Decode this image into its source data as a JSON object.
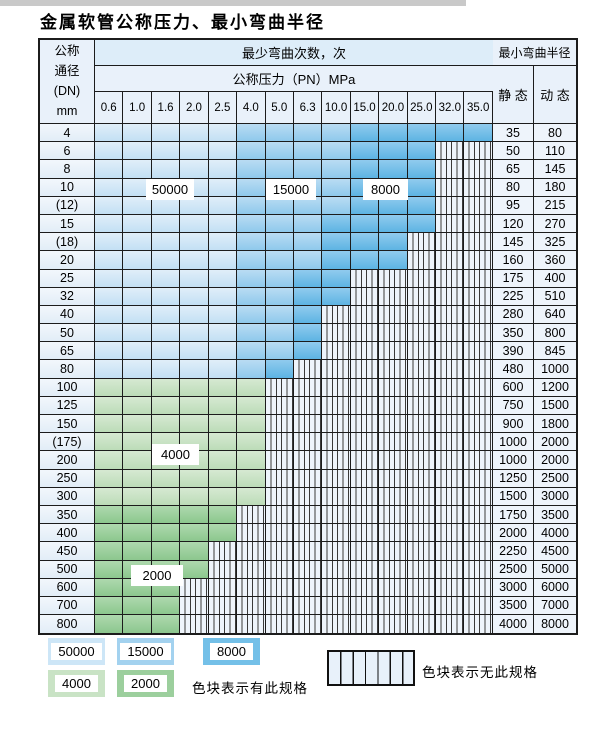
{
  "title": "金属软管公称压力、最小弯曲半径",
  "table": {
    "header": {
      "dn_lines": [
        "公称",
        "通径",
        "(DN)",
        "mm"
      ],
      "cycles_title": "最少弯曲次数，次",
      "pressure_title": "公称压力（PN）MPa",
      "pressures": [
        "0.6",
        "1.0",
        "1.6",
        "2.0",
        "2.5",
        "4.0",
        "5.0",
        "6.3",
        "10.0",
        "15.0",
        "20.0",
        "25.0",
        "32.0",
        "35.0"
      ],
      "radius_title": "最小弯曲半径",
      "static_label": "静 态",
      "dynamic_label": "动 态"
    },
    "spec_code_map": {
      "L": "50000",
      "M": "15000",
      "D": "8000",
      "G": "4000",
      "N": "2000",
      "X": "no-spec"
    },
    "rows": [
      {
        "dn": "4",
        "cells": "LLLLLMMMMDDDDD",
        "static": "35",
        "dynamic": "80"
      },
      {
        "dn": "6",
        "cells": "LLLLLMMMMDDDXX",
        "static": "50",
        "dynamic": "110"
      },
      {
        "dn": "8",
        "cells": "LLLLLMMMMDDDXX",
        "static": "65",
        "dynamic": "145"
      },
      {
        "dn": "10",
        "cells": "LLLLLMMMMDDDXX",
        "static": "80",
        "dynamic": "180"
      },
      {
        "dn": "(12)",
        "cells": "LLLLLMMMMDDDXX",
        "static": "95",
        "dynamic": "215"
      },
      {
        "dn": "15",
        "cells": "LLLLLMMMDDDDXX",
        "static": "120",
        "dynamic": "270"
      },
      {
        "dn": "(18)",
        "cells": "LLLLLMMMDDDXXX",
        "static": "145",
        "dynamic": "325"
      },
      {
        "dn": "20",
        "cells": "LLLLLMMMDDDXXX",
        "static": "160",
        "dynamic": "360"
      },
      {
        "dn": "25",
        "cells": "LLLLLMMDDXXXXX",
        "static": "175",
        "dynamic": "400"
      },
      {
        "dn": "32",
        "cells": "LLLLLMMDDXXXXX",
        "static": "225",
        "dynamic": "510"
      },
      {
        "dn": "40",
        "cells": "LLLLLMMDXXXXXX",
        "static": "280",
        "dynamic": "640"
      },
      {
        "dn": "50",
        "cells": "LLLLLMMDXXXXXX",
        "static": "350",
        "dynamic": "800"
      },
      {
        "dn": "65",
        "cells": "LLLLLMMDXXXXXX",
        "static": "390",
        "dynamic": "845"
      },
      {
        "dn": "80",
        "cells": "LLLLLMDXXXXXXX",
        "static": "480",
        "dynamic": "1000"
      },
      {
        "dn": "100",
        "cells": "GGGGGGXXXXXXXX",
        "static": "600",
        "dynamic": "1200"
      },
      {
        "dn": "125",
        "cells": "GGGGGGXXXXXXXX",
        "static": "750",
        "dynamic": "1500"
      },
      {
        "dn": "150",
        "cells": "GGGGGGXXXXXXXX",
        "static": "900",
        "dynamic": "1800"
      },
      {
        "dn": "(175)",
        "cells": "GGGGGGXXXXXXXX",
        "static": "1000",
        "dynamic": "2000"
      },
      {
        "dn": "200",
        "cells": "GGGGGGXXXXXXXX",
        "static": "1000",
        "dynamic": "2000"
      },
      {
        "dn": "250",
        "cells": "GGGGGGXXXXXXXX",
        "static": "1250",
        "dynamic": "2500"
      },
      {
        "dn": "300",
        "cells": "GGGGGGXXXXXXXX",
        "static": "1500",
        "dynamic": "3000"
      },
      {
        "dn": "350",
        "cells": "NNNNNXXXXXXXXX",
        "static": "1750",
        "dynamic": "3500"
      },
      {
        "dn": "400",
        "cells": "NNNNNXXXXXXXXX",
        "static": "2000",
        "dynamic": "4000"
      },
      {
        "dn": "450",
        "cells": "NNNNXXXXXXXXXX",
        "static": "2250",
        "dynamic": "4500"
      },
      {
        "dn": "500",
        "cells": "NNNNXXXXXXXXXX",
        "static": "2500",
        "dynamic": "5000"
      },
      {
        "dn": "600",
        "cells": "NNNXXXXXXXXXXX",
        "static": "3000",
        "dynamic": "6000"
      },
      {
        "dn": "700",
        "cells": "NNNXXXXXXXXXXX",
        "static": "3500",
        "dynamic": "7000"
      },
      {
        "dn": "800",
        "cells": "NNNXXXXXXXXXXX",
        "static": "4000",
        "dynamic": "8000"
      }
    ],
    "overlay_labels": [
      "50000",
      "15000",
      "8000",
      "4000",
      "2000"
    ]
  },
  "legend": {
    "items": [
      {
        "label": "50000",
        "code": "L"
      },
      {
        "label": "15000",
        "code": "M"
      },
      {
        "label": "8000",
        "code": "D"
      },
      {
        "label": "4000",
        "code": "G"
      },
      {
        "label": "2000",
        "code": "N"
      }
    ],
    "has_spec_text": "色块表示有此规格",
    "no_spec_text": "色块表示无此规格"
  },
  "colors": {
    "blue_light": "#cde6f7",
    "blue_mid": "#a3d2ef",
    "blue_dark": "#74c0e8",
    "green_light": "#c9e3c5",
    "green_mid": "#9ccf9d",
    "grid": "#1c1c1c",
    "header_bg": "#e9f1fa"
  }
}
